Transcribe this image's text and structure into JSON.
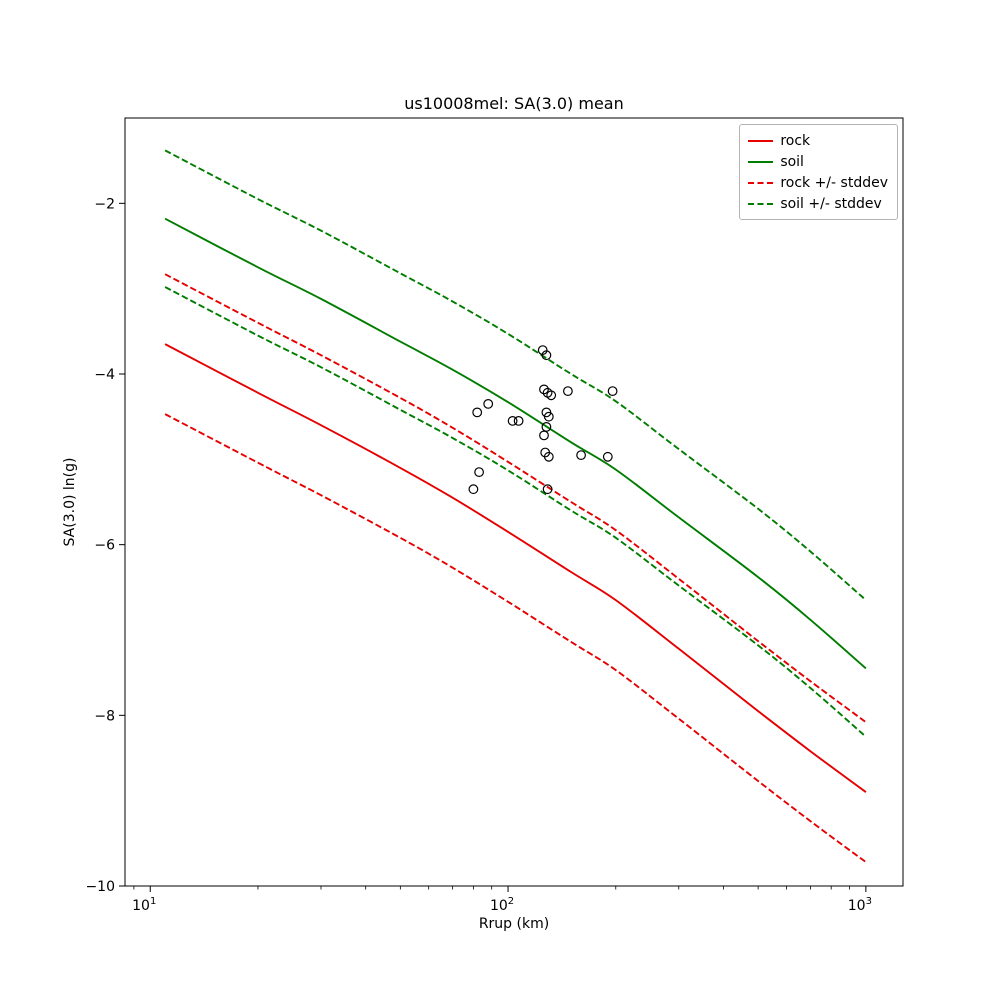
{
  "chart_data": {
    "type": "line",
    "title": "us10008mel: SA(3.0) mean",
    "xlabel": "Rrup (km)",
    "ylabel": "SA(3.0) ln(g)",
    "x_scale": "log",
    "grid": false,
    "legend_position": "upper right",
    "xlim": [
      8.5,
      1270
    ],
    "ylim": [
      -10,
      -1
    ],
    "x_ticks": [
      {
        "v": 10,
        "mantissa": "10",
        "exp": "1"
      },
      {
        "v": 100,
        "mantissa": "10",
        "exp": "2"
      },
      {
        "v": 1000,
        "mantissa": "10",
        "exp": "3"
      }
    ],
    "y_ticks": [
      {
        "v": -2,
        "label": "−2"
      },
      {
        "v": -4,
        "label": "−4"
      },
      {
        "v": -6,
        "label": "−6"
      },
      {
        "v": -8,
        "label": "−8"
      },
      {
        "v": -10,
        "label": "−10"
      }
    ],
    "x": [
      11,
      20,
      30,
      50,
      70,
      100,
      150,
      200,
      300,
      500,
      700,
      1000
    ],
    "series": [
      {
        "name": "rock",
        "color": "#e60000",
        "dash": "solid",
        "values": [
          -3.65,
          -4.22,
          -4.6,
          -5.1,
          -5.45,
          -5.85,
          -6.32,
          -6.65,
          -7.22,
          -7.95,
          -8.42,
          -8.9
        ]
      },
      {
        "name": "soil",
        "color": "#007d00",
        "dash": "solid",
        "values": [
          -2.18,
          -2.75,
          -3.12,
          -3.62,
          -3.95,
          -4.33,
          -4.8,
          -5.12,
          -5.68,
          -6.38,
          -6.88,
          -7.45
        ]
      },
      {
        "name": "rock +/- stddev",
        "color": "#e60000",
        "dash": "dashed",
        "values_upper": [
          -2.83,
          -3.4,
          -3.78,
          -4.28,
          -4.63,
          -5.03,
          -5.5,
          -5.83,
          -6.4,
          -7.13,
          -7.6,
          -8.08
        ],
        "values_lower": [
          -4.47,
          -5.04,
          -5.42,
          -5.92,
          -6.27,
          -6.67,
          -7.14,
          -7.47,
          -8.04,
          -8.77,
          -9.24,
          -9.72
        ]
      },
      {
        "name": "soil +/- stddev",
        "color": "#007d00",
        "dash": "dashed",
        "values_upper": [
          -1.38,
          -1.95,
          -2.32,
          -2.82,
          -3.15,
          -3.53,
          -4.0,
          -4.32,
          -4.88,
          -5.58,
          -6.08,
          -6.65
        ],
        "values_lower": [
          -2.98,
          -3.55,
          -3.92,
          -4.42,
          -4.75,
          -5.13,
          -5.6,
          -5.92,
          -6.48,
          -7.18,
          -7.68,
          -8.25
        ]
      }
    ],
    "scatter": {
      "marker": "open-circle",
      "color": "#000000",
      "points": [
        [
          82,
          -4.45
        ],
        [
          88,
          -4.35
        ],
        [
          83,
          -5.15
        ],
        [
          80,
          -5.35
        ],
        [
          103,
          -4.55
        ],
        [
          107,
          -4.55
        ],
        [
          125,
          -3.72
        ],
        [
          128,
          -3.78
        ],
        [
          126,
          -4.18
        ],
        [
          129,
          -4.22
        ],
        [
          132,
          -4.25
        ],
        [
          128,
          -4.45
        ],
        [
          130,
          -4.5
        ],
        [
          128,
          -4.62
        ],
        [
          126,
          -4.72
        ],
        [
          127,
          -4.92
        ],
        [
          130,
          -4.97
        ],
        [
          129,
          -5.35
        ],
        [
          147,
          -4.2
        ],
        [
          160,
          -4.95
        ],
        [
          190,
          -4.97
        ],
        [
          196,
          -4.2
        ]
      ]
    }
  }
}
